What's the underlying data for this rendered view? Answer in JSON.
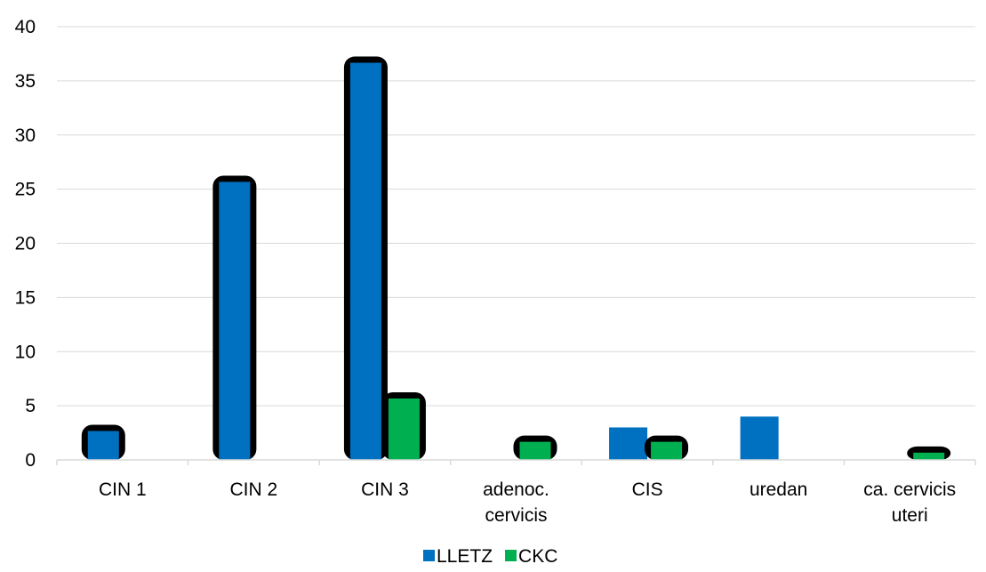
{
  "chart_data": {
    "type": "bar",
    "categories": [
      [
        "CIN 1"
      ],
      [
        "CIN 2"
      ],
      [
        "CIN 3"
      ],
      [
        "adenoc.",
        "cervicis"
      ],
      [
        "CIS"
      ],
      [
        "uredan"
      ],
      [
        "ca. cervicis",
        "uteri"
      ]
    ],
    "series": [
      {
        "name": "LLETZ",
        "color": "#0070C0",
        "values": [
          3,
          26,
          37,
          0,
          3,
          4,
          0
        ]
      },
      {
        "name": "CKC",
        "color": "#00B050",
        "values": [
          0,
          0,
          6,
          2,
          2,
          0,
          1
        ]
      }
    ],
    "outlined": {
      "LLETZ": [
        true,
        true,
        true,
        false,
        false,
        false,
        false
      ],
      "CKC": [
        false,
        false,
        true,
        true,
        true,
        false,
        true
      ]
    },
    "ylim": [
      0,
      40
    ],
    "yticks": [
      0,
      5,
      10,
      15,
      20,
      25,
      30,
      35,
      40
    ],
    "grid": true,
    "legend": "bottom-center",
    "outline_color": "#000000"
  }
}
